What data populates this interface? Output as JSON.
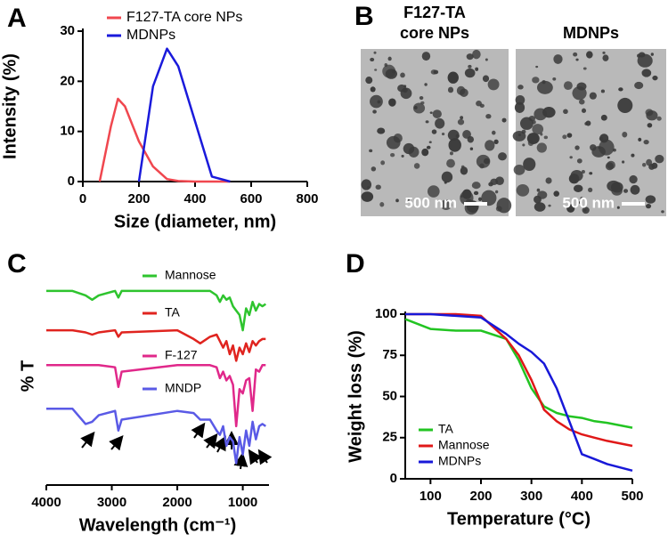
{
  "chart_data": [
    {
      "type": "line",
      "label": "A",
      "xlabel": "Size (diameter, nm)",
      "ylabel": "Intensity (%)",
      "x": [
        60,
        100,
        125,
        150,
        200,
        250,
        300,
        340,
        400,
        460,
        525
      ],
      "series": [
        {
          "name": "F127-TA core NPs",
          "color": "#f0474f",
          "values": [
            0,
            11,
            16.5,
            15,
            8,
            3,
            0.5,
            0.1,
            0,
            0,
            0
          ]
        },
        {
          "name": "MDNPs",
          "color": "#1a1adb",
          "values": [
            null,
            null,
            null,
            null,
            0,
            19,
            26.5,
            23,
            12,
            1,
            0
          ]
        }
      ],
      "xlim": [
        0,
        800
      ],
      "xticks": [
        0,
        200,
        400,
        600,
        800
      ],
      "ylim": [
        0,
        30
      ],
      "yticks": [
        0,
        10,
        20,
        30
      ],
      "legend": "upper left"
    },
    {
      "type": "image",
      "label": "B",
      "panels": [
        {
          "title": [
            "F127-TA",
            "core NPs"
          ],
          "scale_bar": "500 nm"
        },
        {
          "title": [
            "MDNPs"
          ],
          "scale_bar": "500 nm"
        }
      ]
    },
    {
      "type": "line",
      "label": "C",
      "xlabel": "Wavelength (cm⁻¹)",
      "ylabel": "% T",
      "x": [
        4000,
        3600,
        3400,
        3300,
        3200,
        2950,
        2900,
        2850,
        2000,
        1750,
        1650,
        1500,
        1400,
        1350,
        1300,
        1250,
        1200,
        1150,
        1100,
        1050,
        1000,
        950,
        900,
        850,
        800,
        750,
        700,
        650
      ],
      "series": [
        {
          "name": "Mannose",
          "color": "#2ec42e",
          "values": [
            89,
            89,
            87,
            85,
            87,
            89,
            86,
            89,
            89,
            89,
            89,
            89,
            87,
            84,
            87,
            85,
            86,
            82,
            80,
            78,
            71,
            81,
            78,
            84,
            80,
            83,
            82,
            83
          ]
        },
        {
          "name": "TA",
          "color": "#e0241f",
          "values": [
            71,
            71,
            70,
            69,
            70,
            71,
            68,
            70,
            71,
            67,
            65,
            68,
            69,
            66,
            63,
            66,
            60,
            64,
            57,
            63,
            60,
            65,
            61,
            66,
            64,
            66,
            67,
            67
          ]
        },
        {
          "name": "F-127",
          "color": "#e0288a",
          "values": [
            55,
            55,
            55,
            55,
            55,
            54,
            45,
            52,
            55,
            55,
            55,
            55,
            54,
            49,
            52,
            48,
            50,
            46,
            27,
            44,
            42,
            48,
            49,
            34,
            53,
            52,
            55,
            55
          ]
        },
        {
          "name": "MNDP",
          "color": "#5a5ae6",
          "values": [
            35,
            35,
            28,
            29,
            32,
            34,
            25,
            30,
            34,
            33,
            30,
            30,
            25,
            23,
            27,
            18,
            22,
            20,
            10,
            22,
            14,
            25,
            18,
            29,
            21,
            27,
            28,
            27
          ]
        }
      ],
      "xlim": [
        4000,
        600
      ],
      "xticks": [
        4000,
        3000,
        2000,
        1000
      ],
      "ylim": [
        0,
        100
      ],
      "legend": "inline"
    },
    {
      "type": "line",
      "label": "D",
      "xlabel": "Temperature (°C)",
      "ylabel": "Weight loss (%)",
      "x": [
        50,
        100,
        150,
        200,
        250,
        275,
        300,
        325,
        350,
        375,
        400,
        425,
        450,
        500
      ],
      "series": [
        {
          "name": "TA",
          "color": "#22c422",
          "values": [
            97,
            91,
            90,
            90,
            85,
            72,
            55,
            44,
            40,
            38,
            37,
            35,
            34,
            31
          ]
        },
        {
          "name": "Mannose",
          "color": "#e01818",
          "values": [
            100,
            100,
            100,
            99,
            85,
            75,
            60,
            42,
            35,
            30,
            27,
            25,
            23,
            20
          ]
        },
        {
          "name": "MDNPs",
          "color": "#1818d8",
          "values": [
            100,
            100,
            99,
            98,
            88,
            82,
            77,
            70,
            55,
            35,
            15,
            12,
            9,
            5
          ]
        }
      ],
      "xlim": [
        50,
        500
      ],
      "xticks": [
        100,
        200,
        300,
        400,
        500
      ],
      "ylim": [
        0,
        100
      ],
      "yticks": [
        0,
        25,
        50,
        75,
        100
      ],
      "legend": "lower left"
    }
  ]
}
